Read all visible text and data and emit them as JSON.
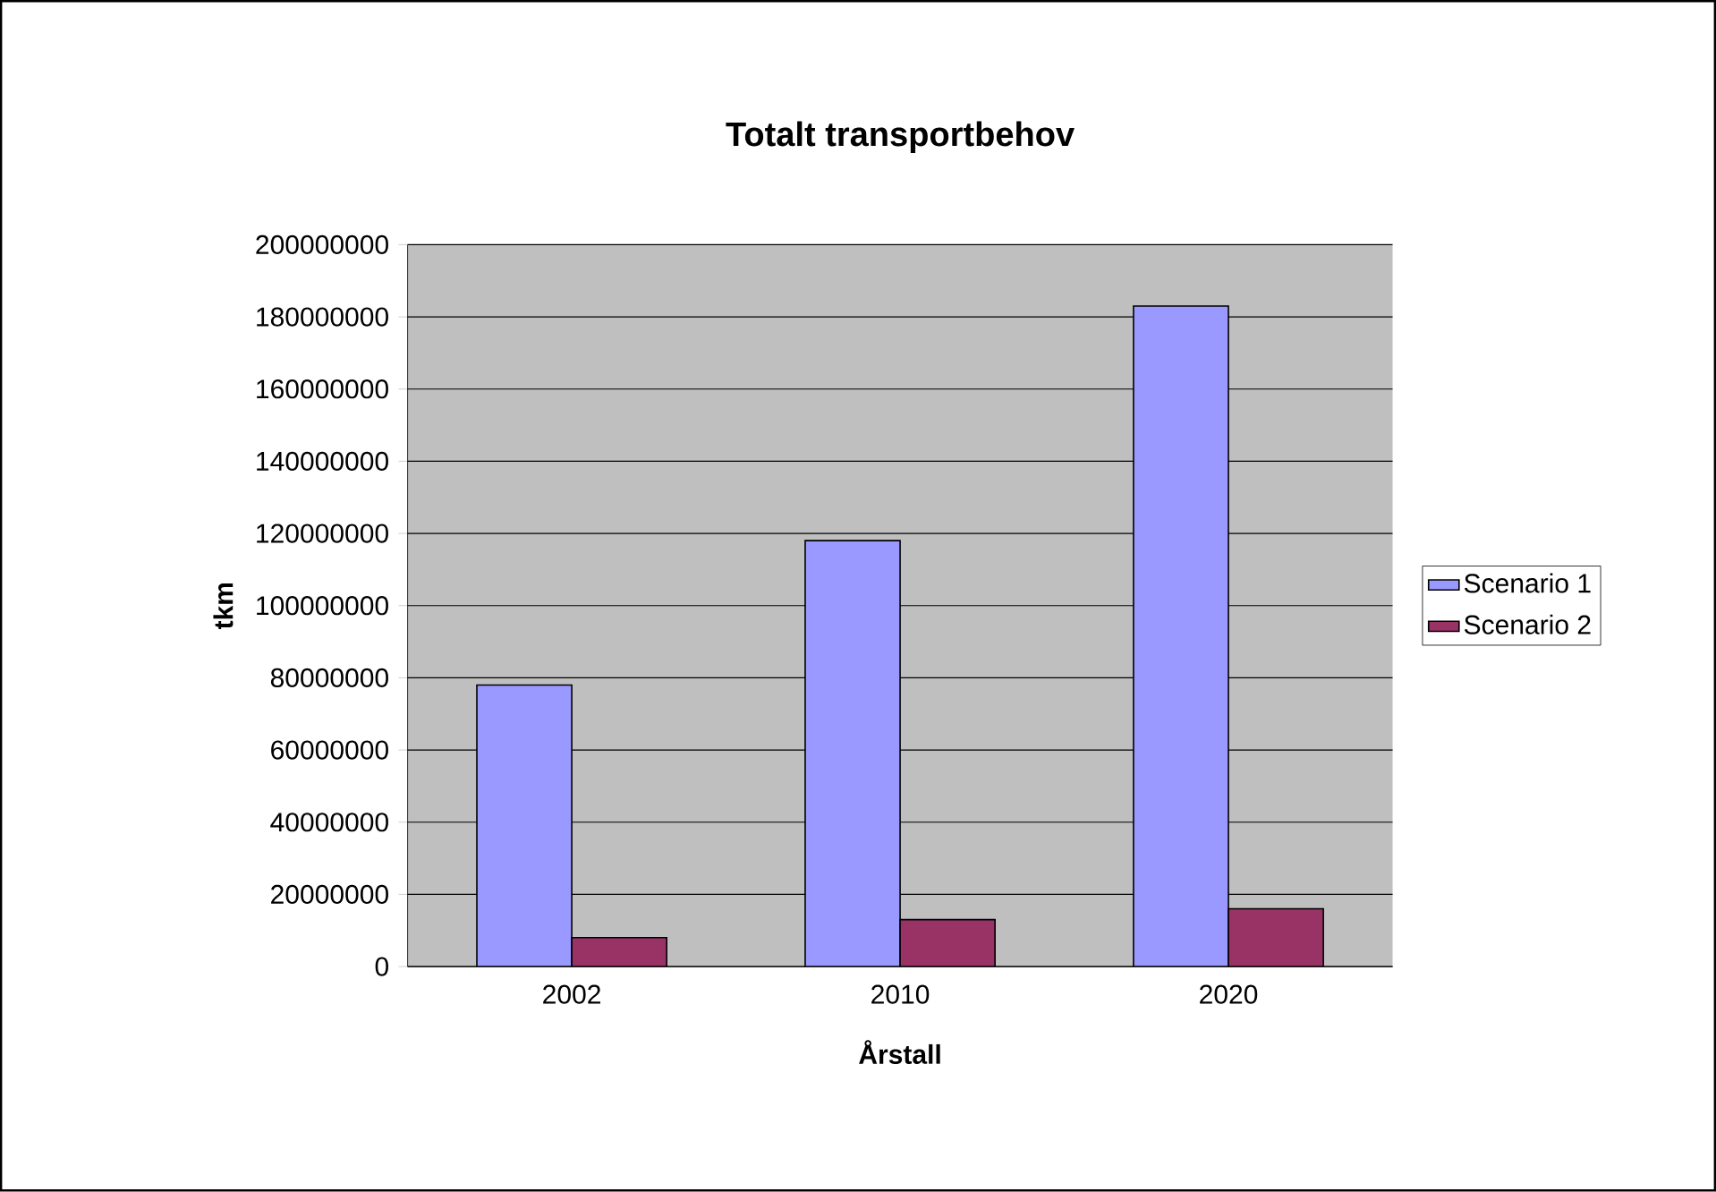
{
  "chart_data": {
    "type": "bar",
    "title": "Totalt transportbehov",
    "xlabel": "Årstall",
    "ylabel": "tkm",
    "categories": [
      "2002",
      "2010",
      "2020"
    ],
    "series": [
      {
        "name": "Scenario 1",
        "color": "#9999ff",
        "values": [
          78000000,
          118000000,
          183000000
        ]
      },
      {
        "name": "Scenario 2",
        "color": "#993366",
        "values": [
          8000000,
          13000000,
          16000000
        ]
      }
    ],
    "ylim": [
      0,
      200000000
    ],
    "yticks": [
      0,
      20000000,
      40000000,
      60000000,
      80000000,
      100000000,
      120000000,
      140000000,
      160000000,
      180000000,
      200000000
    ],
    "grid": "y",
    "legend": "right"
  }
}
